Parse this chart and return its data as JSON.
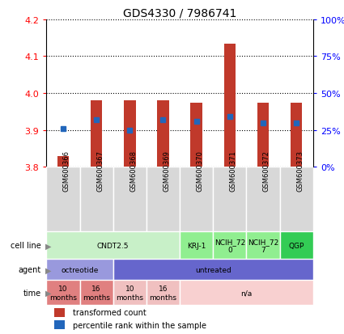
{
  "title": "GDS4330 / 7986741",
  "samples": [
    "GSM600366",
    "GSM600367",
    "GSM600368",
    "GSM600369",
    "GSM600370",
    "GSM600371",
    "GSM600372",
    "GSM600373"
  ],
  "bar_bottom": [
    3.8,
    3.8,
    3.8,
    3.8,
    3.8,
    3.8,
    3.8,
    3.8
  ],
  "bar_top": [
    3.83,
    3.98,
    3.98,
    3.98,
    3.975,
    4.135,
    3.975,
    3.975
  ],
  "percentile": [
    26,
    32,
    25,
    32,
    31,
    34,
    30,
    30
  ],
  "ylim_left": [
    3.8,
    4.2
  ],
  "ylim_right": [
    0,
    100
  ],
  "yticks_left": [
    3.8,
    3.9,
    4.0,
    4.1,
    4.2
  ],
  "yticks_right": [
    0,
    25,
    50,
    75,
    100
  ],
  "ytick_labels_right": [
    "0%",
    "25%",
    "50%",
    "75%",
    "100%"
  ],
  "bar_color": "#c0392b",
  "dot_color": "#2266bb",
  "cell_line_groups": [
    {
      "label": "CNDT2.5",
      "start": 0,
      "end": 4,
      "color": "#c8f0c8"
    },
    {
      "label": "KRJ-1",
      "start": 4,
      "end": 5,
      "color": "#90ee90"
    },
    {
      "label": "NCIH_72\n0",
      "start": 5,
      "end": 6,
      "color": "#90ee90"
    },
    {
      "label": "NCIH_72\n7",
      "start": 6,
      "end": 7,
      "color": "#90ee90"
    },
    {
      "label": "QGP",
      "start": 7,
      "end": 8,
      "color": "#33cc55"
    }
  ],
  "agent_groups": [
    {
      "label": "octreotide",
      "start": 0,
      "end": 2,
      "color": "#9999dd"
    },
    {
      "label": "untreated",
      "start": 2,
      "end": 8,
      "color": "#6666cc"
    }
  ],
  "time_groups": [
    {
      "label": "10\nmonths",
      "start": 0,
      "end": 1,
      "color": "#e08080"
    },
    {
      "label": "16\nmonths",
      "start": 1,
      "end": 2,
      "color": "#e08080"
    },
    {
      "label": "10\nmonths",
      "start": 2,
      "end": 3,
      "color": "#f0c0c0"
    },
    {
      "label": "16\nmonths",
      "start": 3,
      "end": 4,
      "color": "#f0c0c0"
    },
    {
      "label": "n/a",
      "start": 4,
      "end": 8,
      "color": "#f8d0d0"
    }
  ],
  "legend_bar_label": "transformed count",
  "legend_dot_label": "percentile rank within the sample",
  "row_labels": [
    "cell line",
    "agent",
    "time"
  ]
}
